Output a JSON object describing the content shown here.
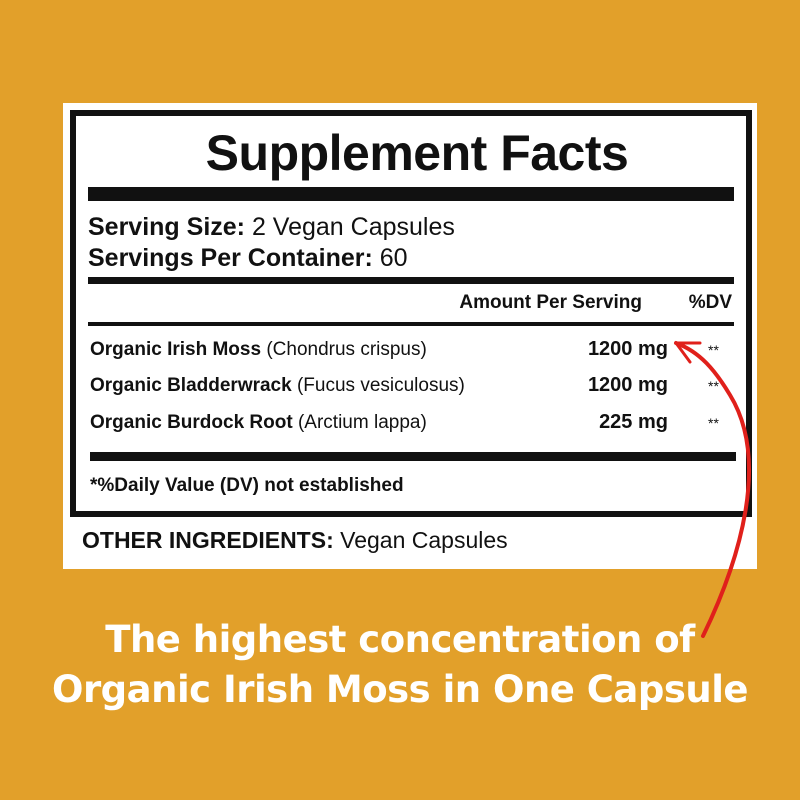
{
  "label": {
    "title": "Supplement Facts",
    "serving_size_label": "Serving Size:",
    "serving_size_value": "2 Vegan Capsules",
    "servings_per_container_label": "Servings Per Container:",
    "servings_per_container_value": "60",
    "amount_header": "Amount Per Serving",
    "dv_header": "%DV",
    "ingredients": [
      {
        "name": "Organic Irish Moss",
        "latin": "(Chondrus crispus)",
        "amount": "1200 mg",
        "dv": "**"
      },
      {
        "name": "Organic Bladderwrack",
        "latin": "(Fucus vesiculosus)",
        "amount": "1200 mg",
        "dv": "**"
      },
      {
        "name": "Organic Burdock Root",
        "latin": "(Arctium lappa)",
        "amount": "225 mg",
        "dv": "**"
      }
    ],
    "footnote": "*%Daily Value (DV) not established",
    "other_ingredients_label": "OTHER INGREDIENTS:",
    "other_ingredients_value": "Vegan Capsules"
  },
  "tagline": {
    "line1": "The highest concentration of",
    "line2": "Organic Irish Moss in One Capsule"
  },
  "colors": {
    "background": "#E2A02A",
    "arrow": "#E0201B",
    "text": "#111111"
  }
}
